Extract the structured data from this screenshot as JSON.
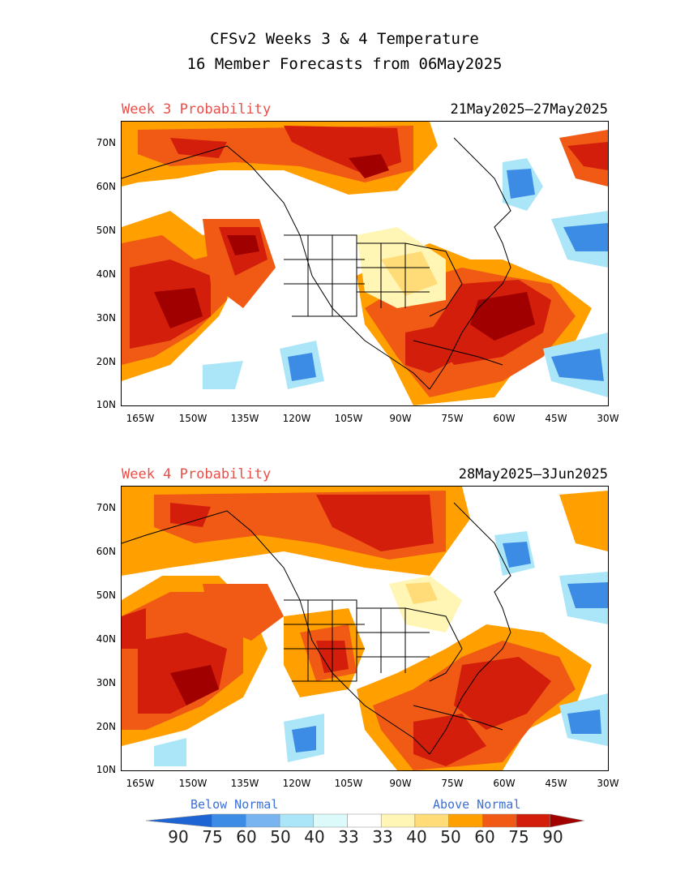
{
  "header": {
    "line1": "CFSv2 Weeks 3 & 4 Temperature",
    "line2": "16 Member Forecasts from 06May2025"
  },
  "panels": [
    {
      "left_label": "Week 3 Probability",
      "right_label": "21May2025—27May2025"
    },
    {
      "left_label": "Week 4 Probability",
      "right_label": "28May2025—3Jun2025"
    }
  ],
  "axes": {
    "lat_ticks": [
      "70N",
      "60N",
      "50N",
      "40N",
      "30N",
      "20N",
      "10N"
    ],
    "lon_ticks": [
      "165W",
      "150W",
      "135W",
      "120W",
      "105W",
      "90W",
      "75W",
      "60W",
      "45W",
      "30W"
    ]
  },
  "colorbar": {
    "below_label": "Below Normal",
    "above_label": "Above Normal",
    "numbers": [
      "90",
      "75",
      "60",
      "50",
      "40",
      "33",
      "33",
      "40",
      "50",
      "60",
      "75",
      "90"
    ],
    "colors": [
      "#1e64d2",
      "#3c8ce6",
      "#78b4f0",
      "#aae6f8",
      "#dcfafa",
      "#ffffff",
      "#fff5b4",
      "#ffdc78",
      "#ffa000",
      "#f05a14",
      "#d21e0a",
      "#a00000"
    ]
  }
}
